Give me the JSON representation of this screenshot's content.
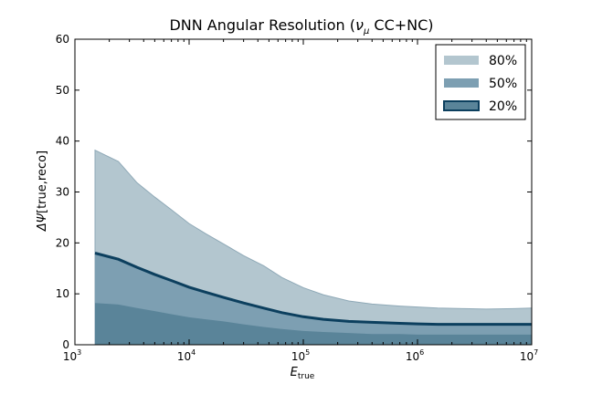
{
  "chart_data": {
    "type": "area",
    "title": "DNN Angular Resolution (νμ CC+NC)",
    "title_parts": {
      "prefix": "DNN Angular Resolution (",
      "nu": "ν",
      "mu": "μ",
      "suffix": " CC+NC)"
    },
    "xlabel": {
      "main": "E",
      "sub": "true"
    },
    "ylabel": {
      "main": "ΔΨ",
      "rest": "[true,reco]"
    },
    "xscale": "log",
    "xlim": [
      1000,
      10000000
    ],
    "ylim": [
      0,
      60
    ],
    "x_ticks": [
      {
        "value": 1000,
        "base": "10",
        "exp": "3"
      },
      {
        "value": 10000,
        "base": "10",
        "exp": "4"
      },
      {
        "value": 100000,
        "base": "10",
        "exp": "5"
      },
      {
        "value": 1000000,
        "base": "10",
        "exp": "6"
      },
      {
        "value": 10000000,
        "base": "10",
        "exp": "7"
      }
    ],
    "y_ticks": [
      0,
      10,
      20,
      30,
      40,
      50,
      60
    ],
    "legend_placement": "top-right",
    "x": [
      1500,
      2400,
      3500,
      5000,
      7000,
      10000,
      14000,
      20000,
      30000,
      45000,
      65000,
      100000,
      150000,
      250000,
      400000,
      700000,
      1000000,
      1500000,
      2500000,
      4000000,
      7000000,
      10000000
    ],
    "series": [
      {
        "name": "80%",
        "role": "band",
        "color": "#b3c6cf",
        "values": [
          38.2,
          36.0,
          31.8,
          29.0,
          26.5,
          23.8,
          21.8,
          19.8,
          17.5,
          15.5,
          13.2,
          11.2,
          9.8,
          8.6,
          8.0,
          7.6,
          7.4,
          7.2,
          7.1,
          7.0,
          7.1,
          7.2
        ]
      },
      {
        "name": "50%",
        "role": "line",
        "color": "#0c3f5e",
        "values": [
          18.0,
          16.8,
          15.2,
          13.8,
          12.6,
          11.3,
          10.3,
          9.3,
          8.2,
          7.2,
          6.3,
          5.5,
          5.0,
          4.6,
          4.4,
          4.2,
          4.1,
          4.0,
          4.0,
          4.0,
          4.0,
          4.0
        ]
      },
      {
        "name": "20%",
        "role": "band",
        "color": "#5a8499",
        "values": [
          8.2,
          7.9,
          7.2,
          6.6,
          6.0,
          5.4,
          5.0,
          4.6,
          4.0,
          3.5,
          3.1,
          2.7,
          2.5,
          2.3,
          2.1,
          2.1,
          2.0,
          2.0,
          2.0,
          2.0,
          2.0,
          2.0
        ]
      }
    ],
    "legend": [
      {
        "label": "80%",
        "color": "#b3c6cf",
        "kind": "patch"
      },
      {
        "label": "50%",
        "color": "#7d9fb2",
        "kind": "patch"
      },
      {
        "label": "20%",
        "color": "#5a8499",
        "kind": "line"
      }
    ],
    "band_between_color": "#7d9fb2",
    "grid": false
  }
}
